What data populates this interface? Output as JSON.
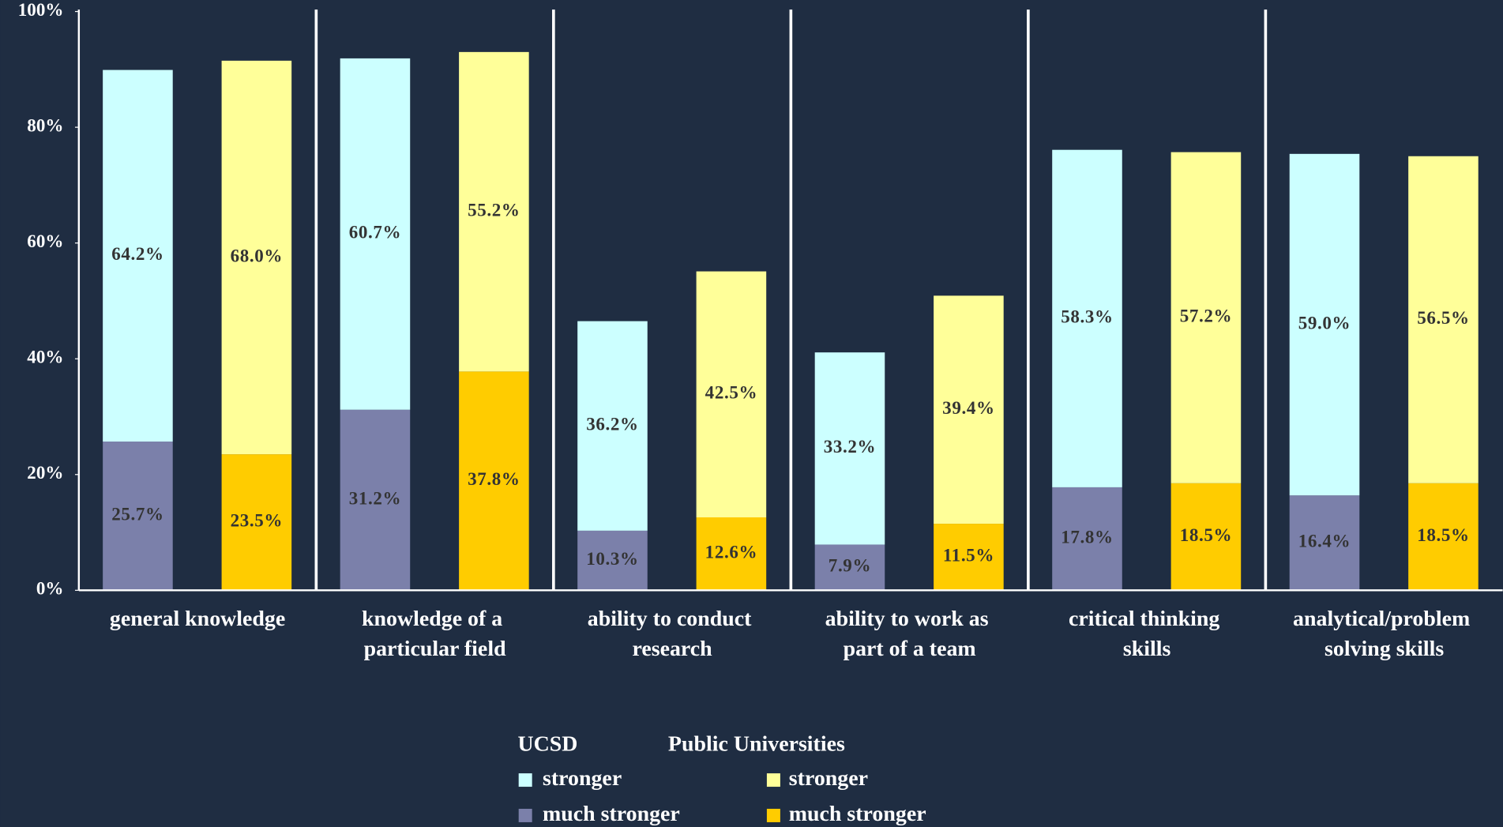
{
  "chart_data": {
    "type": "grouped-stacked-bar",
    "categories": [
      "general knowledge",
      "knowledge of a particular field",
      "ability to conduct research",
      "ability to work as part of a team",
      "critical thinking skills",
      "analytical/problem solving skills"
    ],
    "groups": [
      {
        "name": "UCSD",
        "series": [
          {
            "name": "stronger",
            "color": "#ccffff",
            "values": [
              64.2,
              60.7,
              36.2,
              33.2,
              58.3,
              59.0
            ],
            "value_labels": [
              "64.2%",
              "60.7%",
              "36.2%",
              "33.2%",
              "58.3%",
              "59.0%"
            ]
          },
          {
            "name": "much stronger",
            "color": "#7b80aa",
            "values": [
              25.7,
              31.2,
              10.3,
              7.9,
              17.8,
              16.4
            ],
            "value_labels": [
              "25.7%",
              "31.2%",
              "10.3%",
              "7.9%",
              "17.8%",
              "16.4%"
            ]
          }
        ]
      },
      {
        "name": "Public Universities",
        "series": [
          {
            "name": "stronger",
            "color": "#ffff99",
            "values": [
              68.0,
              55.2,
              42.5,
              39.4,
              57.2,
              56.5
            ],
            "value_labels": [
              "68.0%",
              "55.2%",
              "42.5%",
              "39.4%",
              "57.2%",
              "56.5%"
            ]
          },
          {
            "name": "much stronger",
            "color": "#ffcc00",
            "values": [
              23.5,
              37.8,
              12.6,
              11.5,
              18.5,
              18.5
            ],
            "value_labels": [
              "23.5%",
              "37.8%",
              "12.6%",
              "11.5%",
              "18.5%",
              "18.5%"
            ]
          }
        ]
      }
    ],
    "ylim": [
      0,
      100
    ],
    "yticks": [
      {
        "value": 0,
        "label": "0%"
      },
      {
        "value": 20,
        "label": "20%"
      },
      {
        "value": 40,
        "label": "40%"
      },
      {
        "value": 60,
        "label": "60%"
      },
      {
        "value": 80,
        "label": "80%"
      },
      {
        "value": 100,
        "label": "100%"
      }
    ]
  }
}
